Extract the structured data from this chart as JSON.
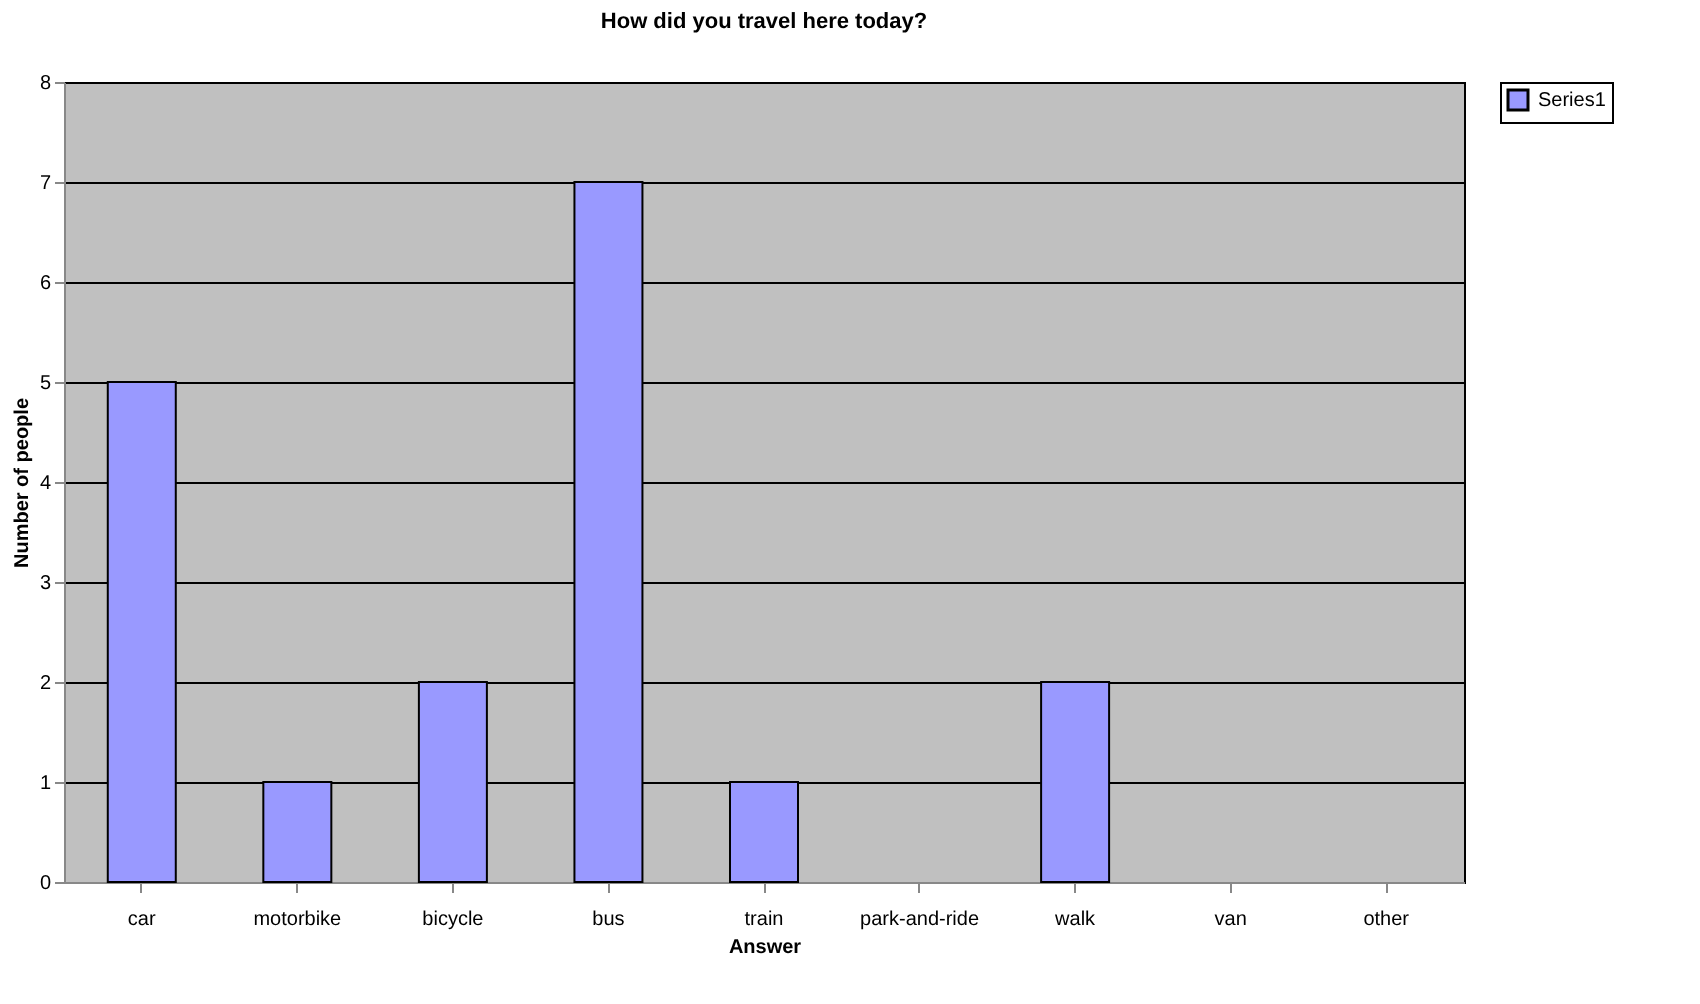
{
  "chart_data": {
    "type": "bar",
    "title": "How did you travel here today?",
    "xlabel": "Answer",
    "ylabel": "Number of people",
    "categories": [
      "car",
      "motorbike",
      "bicycle",
      "bus",
      "train",
      "park-and-ride",
      "walk",
      "van",
      "other"
    ],
    "series": [
      {
        "name": "Series1",
        "color": "#9999ff",
        "values": [
          5,
          1,
          2,
          7,
          1,
          0,
          2,
          0,
          0
        ]
      }
    ],
    "ylim": [
      0,
      8
    ],
    "yticks": [
      0,
      1,
      2,
      3,
      4,
      5,
      6,
      7,
      8
    ],
    "grid": "y",
    "legend": "right"
  }
}
